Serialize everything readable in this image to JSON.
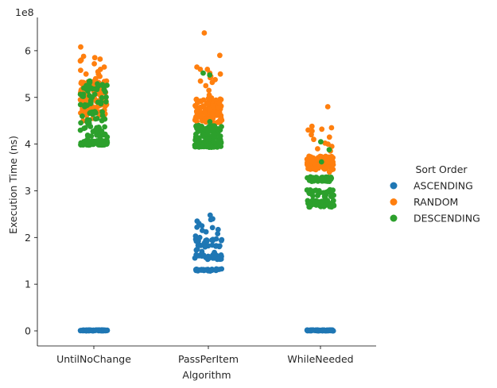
{
  "chart_data": {
    "type": "scatter",
    "subtype": "strip",
    "xlabel": "Algorithm",
    "ylabel": "Execution Time (ns)",
    "y_offset_label": "1e8",
    "y_scale": 100000000,
    "categories": [
      "UntilNoChange",
      "PassPerItem",
      "WhileNeeded"
    ],
    "yticks": [
      0,
      1,
      2,
      3,
      4,
      5,
      6
    ],
    "ylim": [
      -0.3,
      6.7
    ],
    "legend": {
      "title": "Sort Order",
      "placement": "right"
    },
    "series": [
      {
        "name": "ASCENDING",
        "color": "#1f77b4",
        "clusters": [
          {
            "category": "UntilNoChange",
            "bands": [
              [
                0.0,
                0.02,
                90
              ]
            ],
            "sparse": []
          },
          {
            "category": "PassPerItem",
            "bands": [
              [
                1.28,
                1.33,
                30
              ],
              [
                1.53,
                1.63,
                30
              ],
              [
                1.78,
                1.98,
                25
              ]
            ],
            "sparse": [
              1.68,
              1.73,
              2.03,
              2.08,
              2.12,
              2.17,
              2.21,
              2.25,
              2.3,
              2.35,
              2.38,
              2.48,
              2.4,
              2.22,
              2.15,
              1.7,
              1.75,
              2.0
            ]
          },
          {
            "category": "WhileNeeded",
            "bands": [
              [
                0.0,
                0.02,
                90
              ]
            ],
            "sparse": []
          }
        ]
      },
      {
        "name": "RANDOM",
        "color": "#ff7f0e",
        "clusters": [
          {
            "category": "UntilNoChange",
            "bands": [
              [
                4.6,
                5.35,
                110
              ]
            ],
            "sparse": [
              5.4,
              5.45,
              5.5,
              5.55,
              5.6,
              5.65,
              5.72,
              5.8,
              5.85,
              5.88,
              6.08,
              4.5,
              4.55,
              5.5,
              5.82,
              5.78,
              5.58
            ]
          },
          {
            "category": "PassPerItem",
            "bands": [
              [
                4.45,
                5.0,
                100
              ]
            ],
            "sparse": [
              5.05,
              5.15,
              5.25,
              5.32,
              5.38,
              5.45,
              5.52,
              5.6,
              5.65,
              5.9,
              6.38,
              5.35,
              5.5,
              5.42,
              5.6
            ]
          },
          {
            "category": "WhileNeeded",
            "bands": [
              [
                3.45,
                3.75,
                110
              ]
            ],
            "sparse": [
              3.85,
              3.95,
              4.02,
              4.1,
              4.15,
              4.2,
              4.28,
              4.32,
              4.35,
              4.8,
              3.4,
              3.9,
              4.0,
              4.38,
              4.3
            ]
          }
        ]
      },
      {
        "name": "DESCENDING",
        "color": "#2ca02c",
        "clusters": [
          {
            "category": "UntilNoChange",
            "bands": [
              [
                3.98,
                4.08,
                60
              ],
              [
                4.1,
                4.7,
                45
              ],
              [
                4.8,
                5.35,
                40
              ]
            ],
            "sparse": [
              3.98,
              4.0,
              4.02
            ]
          },
          {
            "category": "PassPerItem",
            "bands": [
              [
                3.93,
                4.05,
                60
              ],
              [
                4.05,
                4.4,
                60
              ]
            ],
            "sparse": [
              4.48,
              5.48,
              5.52
            ]
          },
          {
            "category": "WhileNeeded",
            "bands": [
              [
                2.65,
                2.8,
                45
              ],
              [
                2.85,
                3.05,
                30
              ],
              [
                3.2,
                3.3,
                45
              ]
            ],
            "sparse": [
              3.62,
              3.88,
              4.05,
              2.68,
              2.72
            ]
          }
        ]
      }
    ]
  }
}
